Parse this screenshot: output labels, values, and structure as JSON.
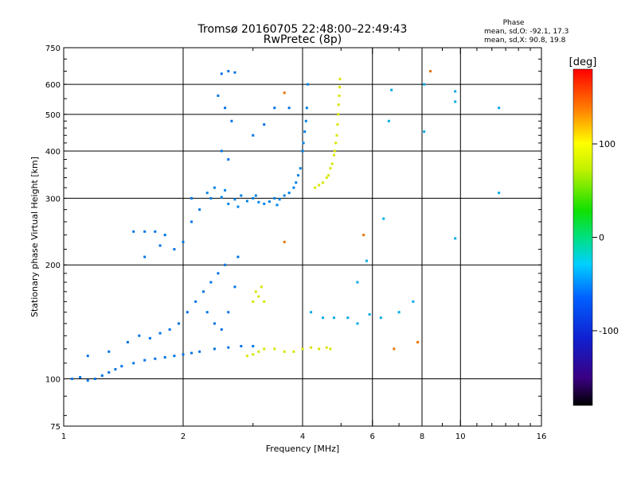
{
  "chart_data": {
    "type": "scatter",
    "title": "Tromsø 20160705 22:48:00–22:49:43",
    "subtitle": "RwPretec (8p)",
    "stats": {
      "heading": "Phase",
      "line_o": "mean, sd,O: -92.1, 17.3",
      "line_x": "mean, sd,X:  90.8, 19.8"
    },
    "xlabel": "Frequency [MHz]",
    "ylabel": "Stationary phase Virtual Height [km]",
    "x_scale": "log",
    "y_scale": "log",
    "xlim": [
      1,
      16
    ],
    "ylim": [
      75,
      750
    ],
    "grid": true,
    "x_ticks": [
      {
        "value": 1,
        "label": "1"
      },
      {
        "value": 2,
        "label": "2"
      },
      {
        "value": 4,
        "label": "4"
      },
      {
        "value": 6,
        "label": "6"
      },
      {
        "value": 8,
        "label": "8"
      },
      {
        "value": 10,
        "label": "10"
      },
      {
        "value": 16,
        "label": "16"
      }
    ],
    "y_ticks": [
      {
        "value": 75,
        "label": "75"
      },
      {
        "value": 100,
        "label": "100"
      },
      {
        "value": 200,
        "label": "200"
      },
      {
        "value": 300,
        "label": "300"
      },
      {
        "value": 400,
        "label": "400"
      },
      {
        "value": 500,
        "label": "500"
      },
      {
        "value": 600,
        "label": "600"
      },
      {
        "value": 750,
        "label": "750"
      }
    ],
    "colorbar": {
      "unit": "[deg]",
      "range": [
        -180,
        180
      ],
      "ticks": [
        {
          "value": 100,
          "label": "100"
        },
        {
          "value": 0,
          "label": "0"
        },
        {
          "value": -100,
          "label": "-100"
        }
      ]
    },
    "point_color": "#1a40e6",
    "series": [
      {
        "trace": "o_mode_f2",
        "phase_deg": -95,
        "points": [
          [
            2.35,
            300
          ],
          [
            2.5,
            302
          ],
          [
            2.7,
            298
          ],
          [
            2.9,
            295
          ],
          [
            3.1,
            293
          ],
          [
            3.3,
            294
          ],
          [
            3.5,
            298
          ],
          [
            3.7,
            310
          ],
          [
            3.85,
            330
          ],
          [
            3.95,
            360
          ],
          [
            4.0,
            400
          ],
          [
            4.05,
            450
          ],
          [
            4.1,
            520
          ],
          [
            4.12,
            600
          ],
          [
            2.4,
            320
          ],
          [
            2.6,
            290
          ],
          [
            2.8,
            305
          ],
          [
            3.0,
            300
          ],
          [
            3.2,
            290
          ],
          [
            3.4,
            300
          ],
          [
            3.6,
            305
          ],
          [
            3.8,
            320
          ],
          [
            3.9,
            345
          ],
          [
            4.02,
            420
          ],
          [
            4.08,
            480
          ],
          [
            2.3,
            310
          ],
          [
            2.55,
            315
          ],
          [
            2.75,
            285
          ],
          [
            3.05,
            305
          ],
          [
            3.45,
            288
          ]
        ]
      },
      {
        "trace": "x_mode_f2",
        "phase_deg": 95,
        "points": [
          [
            4.3,
            320
          ],
          [
            4.5,
            330
          ],
          [
            4.65,
            345
          ],
          [
            4.75,
            370
          ],
          [
            4.82,
            400
          ],
          [
            4.88,
            440
          ],
          [
            4.92,
            500
          ],
          [
            4.95,
            560
          ],
          [
            4.97,
            620
          ],
          [
            4.4,
            325
          ],
          [
            4.6,
            340
          ],
          [
            4.7,
            360
          ],
          [
            4.8,
            390
          ],
          [
            4.85,
            420
          ],
          [
            4.9,
            470
          ],
          [
            4.93,
            530
          ],
          [
            4.96,
            590
          ]
        ]
      },
      {
        "trace": "o_mode_lower",
        "phase_deg": -100,
        "points": [
          [
            1.05,
            100
          ],
          [
            1.1,
            101
          ],
          [
            1.15,
            99
          ],
          [
            1.2,
            100
          ],
          [
            1.25,
            102
          ],
          [
            1.3,
            104
          ],
          [
            1.35,
            106
          ],
          [
            1.4,
            108
          ],
          [
            1.5,
            110
          ],
          [
            1.6,
            112
          ],
          [
            1.7,
            113
          ],
          [
            1.8,
            114
          ],
          [
            1.9,
            115
          ],
          [
            2.0,
            116
          ],
          [
            2.1,
            117
          ],
          [
            2.2,
            118
          ],
          [
            2.4,
            120
          ],
          [
            2.6,
            121
          ],
          [
            2.8,
            122
          ],
          [
            3.0,
            122
          ],
          [
            1.45,
            125
          ],
          [
            1.55,
            130
          ],
          [
            1.65,
            128
          ],
          [
            1.75,
            132
          ],
          [
            1.85,
            135
          ],
          [
            1.95,
            140
          ],
          [
            2.05,
            150
          ],
          [
            2.15,
            160
          ],
          [
            2.25,
            170
          ],
          [
            2.35,
            180
          ],
          [
            2.45,
            190
          ],
          [
            2.55,
            200
          ],
          [
            1.5,
            245
          ],
          [
            1.6,
            245
          ],
          [
            1.7,
            245
          ],
          [
            1.8,
            240
          ],
          [
            1.9,
            220
          ],
          [
            1.6,
            210
          ],
          [
            1.75,
            225
          ],
          [
            2.1,
            260
          ],
          [
            2.2,
            280
          ],
          [
            2.0,
            230
          ],
          [
            2.3,
            150
          ],
          [
            2.4,
            140
          ],
          [
            2.5,
            135
          ],
          [
            2.6,
            150
          ],
          [
            2.7,
            175
          ],
          [
            2.75,
            210
          ],
          [
            1.15,
            115
          ],
          [
            1.3,
            118
          ],
          [
            2.1,
            300
          ],
          [
            2.5,
            640
          ],
          [
            2.6,
            650
          ],
          [
            2.7,
            645
          ],
          [
            2.45,
            560
          ],
          [
            2.55,
            520
          ],
          [
            2.65,
            480
          ],
          [
            2.5,
            400
          ],
          [
            2.6,
            380
          ],
          [
            3.2,
            470
          ],
          [
            3.4,
            520
          ],
          [
            3.7,
            520
          ],
          [
            3.0,
            440
          ]
        ]
      },
      {
        "trace": "x_mode_lower",
        "phase_deg": 95,
        "points": [
          [
            2.9,
            115
          ],
          [
            3.0,
            116
          ],
          [
            3.1,
            118
          ],
          [
            3.2,
            120
          ],
          [
            3.4,
            120
          ],
          [
            3.6,
            118
          ],
          [
            3.8,
            118
          ],
          [
            4.0,
            120
          ],
          [
            4.2,
            121
          ],
          [
            4.4,
            120
          ],
          [
            4.6,
            121
          ],
          [
            3.0,
            160
          ],
          [
            3.05,
            170
          ],
          [
            3.1,
            165
          ],
          [
            3.15,
            175
          ],
          [
            3.2,
            160
          ],
          [
            4.7,
            120
          ]
        ]
      },
      {
        "trace": "scattered_high_f",
        "phase_deg": -80,
        "points": [
          [
            4.2,
            150
          ],
          [
            4.5,
            145
          ],
          [
            4.8,
            145
          ],
          [
            5.2,
            145
          ],
          [
            5.5,
            140
          ],
          [
            5.9,
            148
          ],
          [
            6.3,
            145
          ],
          [
            7.0,
            150
          ],
          [
            7.6,
            160
          ],
          [
            9.7,
            575
          ],
          [
            9.7,
            540
          ],
          [
            9.7,
            235
          ],
          [
            12.5,
            520
          ],
          [
            12.5,
            310
          ],
          [
            6.7,
            580
          ],
          [
            6.6,
            480
          ],
          [
            6.4,
            265
          ],
          [
            5.8,
            205
          ],
          [
            5.5,
            180
          ],
          [
            8.1,
            600
          ],
          [
            8.1,
            450
          ]
        ]
      },
      {
        "trace": "scattered_warm",
        "phase_deg": 140,
        "points": [
          [
            8.4,
            650
          ],
          [
            6.8,
            120
          ],
          [
            7.8,
            125
          ],
          [
            5.7,
            240
          ],
          [
            3.6,
            230
          ],
          [
            3.6,
            570
          ]
        ]
      }
    ]
  }
}
